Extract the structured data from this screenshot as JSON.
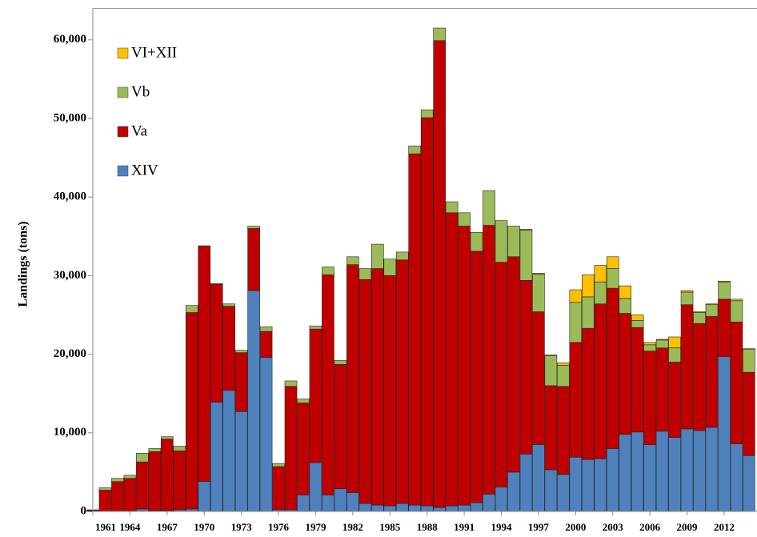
{
  "chart_data": {
    "type": "stacked_bar",
    "y_label": "Landings (tons)",
    "categories": [
      "1961",
      null,
      null,
      "1964",
      null,
      null,
      "1967",
      null,
      null,
      "1970",
      null,
      null,
      "1973",
      null,
      null,
      "1976",
      null,
      null,
      "1979",
      null,
      null,
      "1982",
      null,
      null,
      "1985",
      null,
      null,
      "1988",
      null,
      null,
      "1991",
      null,
      null,
      "1994",
      null,
      null,
      "1997",
      null,
      null,
      "2000",
      null,
      null,
      "2003",
      null,
      null,
      "2006",
      null,
      null,
      "2009",
      null,
      null,
      "2012",
      null,
      null
    ],
    "series": [
      {
        "name": "XIV",
        "color": "#4f81bd",
        "values": [
          100,
          0,
          0,
          0,
          300,
          100,
          100,
          200,
          300,
          3800,
          13900,
          15400,
          12700,
          28100,
          19600,
          200,
          200,
          2100,
          6200,
          2100,
          2900,
          2400,
          1000,
          800,
          700,
          1000,
          800,
          700,
          500,
          700,
          800,
          1100,
          2200,
          3100,
          5000,
          7300,
          8500,
          5300,
          4700,
          6900,
          6600,
          6700,
          8000,
          9800,
          10100,
          8500,
          10200,
          9400,
          10500,
          10300,
          10700,
          19700,
          8600,
          7100
        ]
      },
      {
        "name": "Va",
        "color": "#c00000",
        "values": [
          100,
          2700,
          3800,
          4200,
          6000,
          7500,
          9100,
          7500,
          25000,
          30000,
          15000,
          10700,
          7500,
          7900,
          3300,
          5500,
          15700,
          11700,
          17000,
          28000,
          15800,
          29000,
          28500,
          30100,
          29300,
          31000,
          44700,
          49400,
          59400,
          37300,
          35500,
          32000,
          34200,
          28600,
          27400,
          22100,
          16900,
          10700,
          11200,
          14600,
          16700,
          19700,
          20400,
          15400,
          13300,
          11900,
          10600,
          9600,
          15800,
          13600,
          14100,
          7300,
          15500,
          10600
        ]
      },
      {
        "name": "Vb",
        "color": "#9bbb59",
        "values": [
          0,
          300,
          400,
          400,
          1100,
          400,
          300,
          600,
          900,
          0,
          100,
          300,
          300,
          300,
          600,
          400,
          700,
          500,
          400,
          1000,
          500,
          1000,
          1400,
          3100,
          2100,
          1000,
          1000,
          1000,
          1600,
          1400,
          1700,
          2400,
          4400,
          5300,
          3900,
          6400,
          4800,
          3800,
          2700,
          5100,
          4000,
          2800,
          2500,
          1900,
          900,
          800,
          1000,
          1800,
          1600,
          1400,
          1500,
          2200,
          2700,
          2900
        ]
      },
      {
        "name": "VI+XII",
        "color": "#ffc000",
        "values": [
          0,
          0,
          0,
          0,
          0,
          0,
          0,
          0,
          0,
          0,
          0,
          0,
          0,
          0,
          0,
          0,
          0,
          0,
          0,
          0,
          0,
          0,
          0,
          0,
          0,
          0,
          0,
          0,
          0,
          0,
          0,
          0,
          0,
          0,
          0,
          100,
          100,
          100,
          300,
          1600,
          2800,
          2100,
          1500,
          1600,
          700,
          300,
          100,
          1400,
          200,
          100,
          100,
          100,
          200,
          100
        ]
      }
    ],
    "ylim": [
      0,
      64000
    ],
    "yticks": [
      0,
      {
        "value": 10000,
        "label": "10,000"
      },
      {
        "value": 20000,
        "label": "20,000"
      },
      {
        "value": 30000,
        "label": "30,000"
      },
      {
        "value": 40000,
        "label": "40,000"
      },
      {
        "value": 50000,
        "label": "50,000"
      },
      {
        "value": 60000,
        "label": "60,000"
      }
    ]
  }
}
